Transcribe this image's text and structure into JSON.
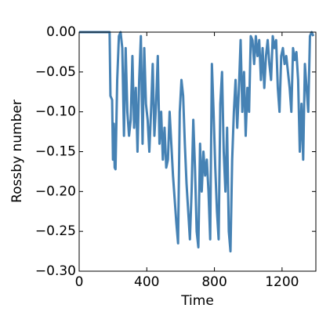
{
  "chart_data": {
    "type": "line",
    "x_label": "Time",
    "y_label": "Rossby number",
    "xlim": [
      0,
      1400
    ],
    "xticks": [
      0,
      400,
      800,
      1200
    ],
    "ylim": [
      -0.3,
      0.0
    ],
    "yticks": [
      {
        "value": -0.3,
        "label": "−0.30"
      },
      {
        "value": -0.25,
        "label": "−0.25"
      },
      {
        "value": -0.2,
        "label": "−0.20"
      },
      {
        "value": -0.15,
        "label": "−0.15"
      },
      {
        "value": -0.1,
        "label": "−0.10"
      },
      {
        "value": -0.05,
        "label": "−0.05"
      },
      {
        "value": 0,
        "label": "0.00"
      }
    ],
    "grid": false,
    "series": [
      {
        "name": "Rossby number",
        "color": "#4682b4",
        "x": [
          0,
          180,
          185,
          195,
          200,
          205,
          210,
          215,
          225,
          235,
          245,
          255,
          265,
          275,
          285,
          295,
          305,
          315,
          325,
          335,
          345,
          355,
          365,
          375,
          385,
          395,
          405,
          415,
          425,
          435,
          445,
          455,
          465,
          475,
          485,
          495,
          505,
          515,
          525,
          535,
          545,
          555,
          565,
          575,
          585,
          595,
          605,
          615,
          625,
          635,
          645,
          655,
          665,
          675,
          685,
          695,
          705,
          715,
          725,
          735,
          745,
          755,
          765,
          775,
          785,
          795,
          805,
          815,
          825,
          835,
          845,
          855,
          865,
          875,
          885,
          895,
          905,
          915,
          925,
          935,
          945,
          955,
          965,
          975,
          985,
          995,
          1005,
          1015,
          1025,
          1035,
          1045,
          1055,
          1065,
          1075,
          1085,
          1095,
          1105,
          1115,
          1125,
          1135,
          1145,
          1155,
          1165,
          1175,
          1185,
          1195,
          1205,
          1215,
          1225,
          1235,
          1245,
          1255,
          1265,
          1275,
          1285,
          1295,
          1305,
          1315,
          1325,
          1335,
          1345,
          1355,
          1365,
          1375,
          1385
        ],
        "values": [
          0,
          0,
          -0.08,
          -0.085,
          -0.16,
          -0.115,
          -0.17,
          -0.172,
          -0.06,
          -0.005,
          0,
          -0.02,
          -0.13,
          -0.02,
          -0.1,
          -0.13,
          -0.11,
          -0.03,
          -0.12,
          -0.07,
          -0.15,
          -0.06,
          -0.005,
          -0.14,
          -0.02,
          -0.09,
          -0.11,
          -0.15,
          -0.1,
          -0.04,
          -0.13,
          -0.09,
          -0.03,
          -0.14,
          -0.1,
          -0.16,
          -0.12,
          -0.17,
          -0.16,
          -0.1,
          -0.14,
          -0.18,
          -0.21,
          -0.24,
          -0.265,
          -0.1,
          -0.06,
          -0.08,
          -0.14,
          -0.19,
          -0.225,
          -0.26,
          -0.2,
          -0.11,
          -0.17,
          -0.25,
          -0.27,
          -0.14,
          -0.2,
          -0.15,
          -0.18,
          -0.16,
          -0.2,
          -0.26,
          -0.04,
          -0.1,
          -0.17,
          -0.225,
          -0.26,
          -0.09,
          -0.05,
          -0.15,
          -0.2,
          -0.12,
          -0.25,
          -0.275,
          -0.16,
          -0.1,
          -0.06,
          -0.12,
          -0.07,
          -0.01,
          -0.1,
          -0.05,
          -0.13,
          -0.07,
          -0.1,
          -0.005,
          -0.01,
          -0.04,
          -0.005,
          -0.03,
          -0.01,
          -0.06,
          -0.02,
          -0.07,
          -0.03,
          -0.01,
          -0.04,
          -0.06,
          -0.005,
          -0.02,
          -0.01,
          -0.07,
          -0.1,
          -0.03,
          -0.02,
          -0.04,
          -0.03,
          -0.05,
          -0.07,
          -0.1,
          -0.02,
          -0.035,
          -0.025,
          -0.06,
          -0.15,
          -0.09,
          -0.16,
          -0.04,
          -0.07,
          -0.1,
          -0.005,
          0,
          -0.005
        ]
      }
    ]
  }
}
